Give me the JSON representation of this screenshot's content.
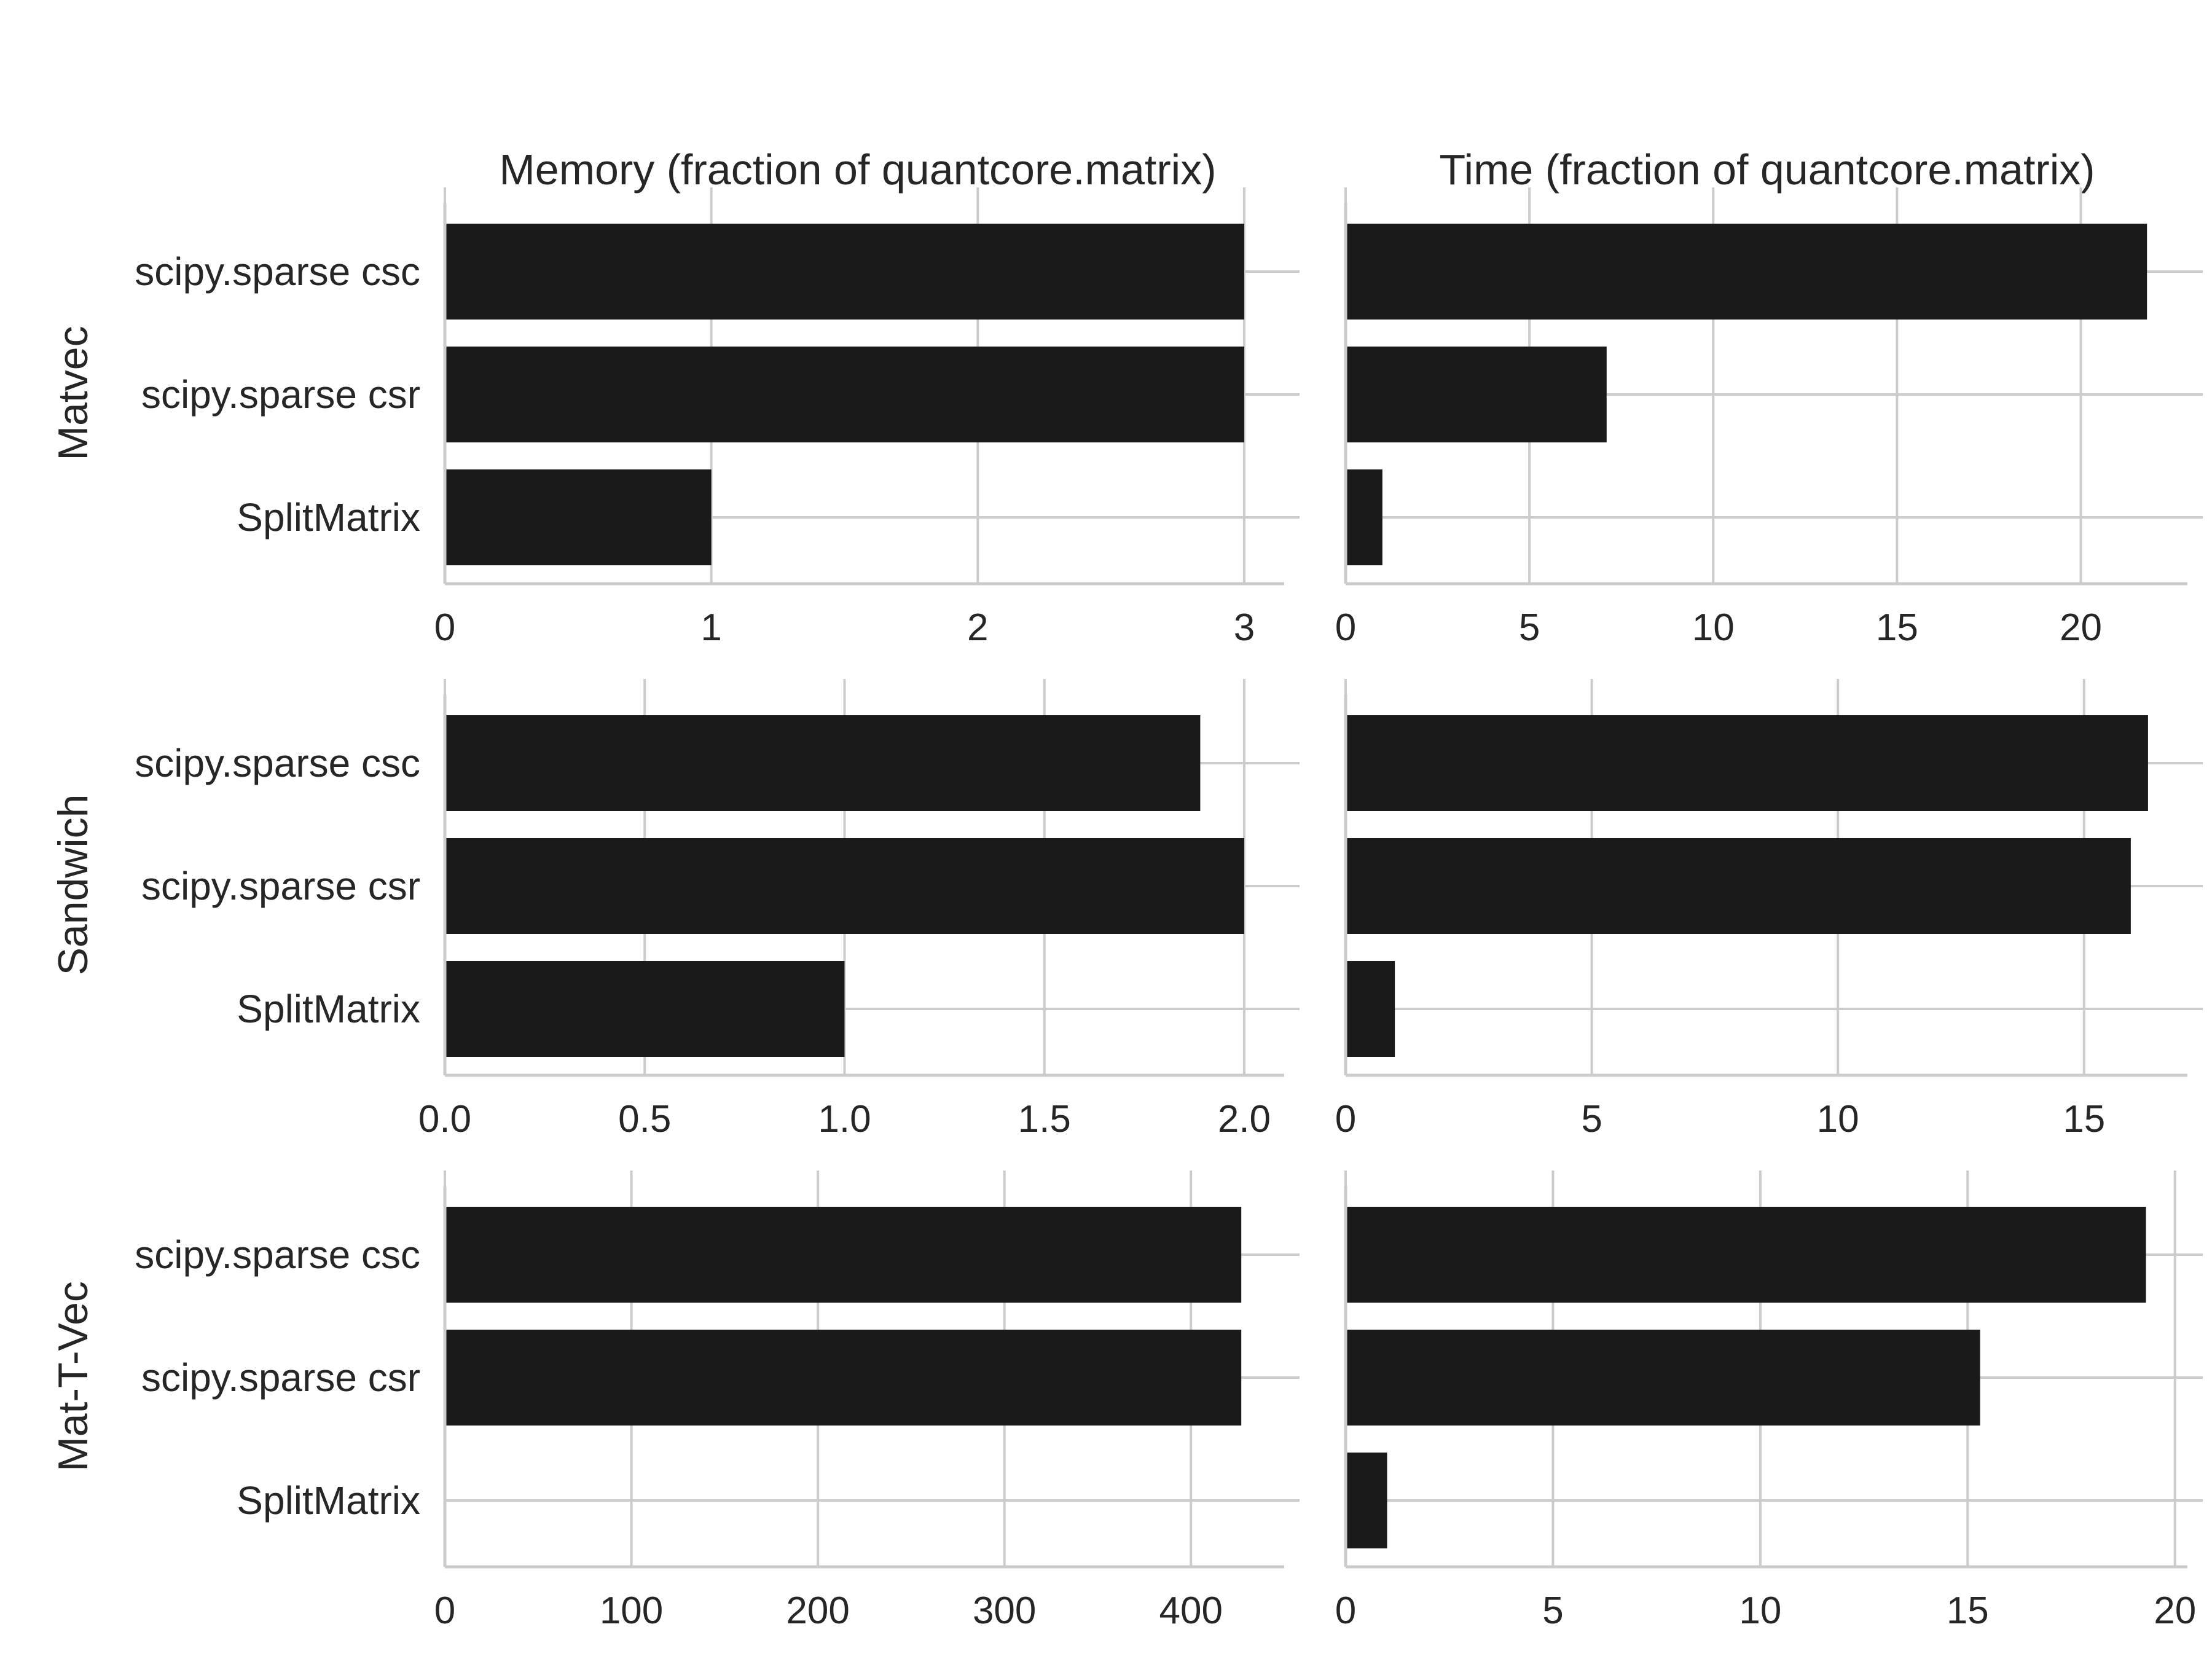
{
  "chart_data": {
    "type": "bar",
    "orientation": "horizontal",
    "col_titles": [
      "Memory (fraction of quantcore.matrix)",
      "Time (fraction of quantcore.matrix)"
    ],
    "row_labels": [
      "Matvec",
      "Sandwich",
      "Mat-T-Vec"
    ],
    "categories": [
      "scipy.sparse csc",
      "scipy.sparse csr",
      "SplitMatrix"
    ],
    "grid": true,
    "colors": {
      "bar": "#1a1a1a",
      "grid": "#cccccc",
      "text": "#262626",
      "background": "#ffffff"
    },
    "panels": [
      {
        "row": "Matvec",
        "metric": "Memory",
        "values": [
          3.0,
          3.0,
          1.0
        ],
        "xlim": [
          0,
          3.15
        ],
        "ticks": [
          0,
          1,
          2,
          3
        ],
        "tick_labels": [
          "0",
          "1",
          "2",
          "3"
        ]
      },
      {
        "row": "Matvec",
        "metric": "Time",
        "values": [
          21.8,
          7.1,
          1.0
        ],
        "xlim": [
          0,
          22.9
        ],
        "ticks": [
          0,
          5,
          10,
          15,
          20
        ],
        "tick_labels": [
          "0",
          "5",
          "10",
          "15",
          "20"
        ]
      },
      {
        "row": "Sandwich",
        "metric": "Memory",
        "values": [
          1.89,
          2.0,
          1.0
        ],
        "xlim": [
          0,
          2.1
        ],
        "ticks": [
          0,
          0.5,
          1.0,
          1.5,
          2.0
        ],
        "tick_labels": [
          "0.0",
          "0.5",
          "1.0",
          "1.5",
          "2.0"
        ]
      },
      {
        "row": "Sandwich",
        "metric": "Time",
        "values": [
          16.3,
          15.95,
          1.0
        ],
        "xlim": [
          0,
          17.1
        ],
        "ticks": [
          0,
          5,
          10,
          15
        ],
        "tick_labels": [
          "0",
          "5",
          "10",
          "15"
        ]
      },
      {
        "row": "Mat-T-Vec",
        "metric": "Memory",
        "values": [
          427,
          427,
          0
        ],
        "xlim": [
          0,
          450
        ],
        "ticks": [
          0,
          100,
          200,
          300,
          400
        ],
        "tick_labels": [
          "0",
          "100",
          "200",
          "300",
          "400"
        ]
      },
      {
        "row": "Mat-T-Vec",
        "metric": "Time",
        "values": [
          19.3,
          15.3,
          1.0
        ],
        "xlim": [
          0,
          20.3
        ],
        "ticks": [
          0,
          5,
          10,
          15,
          20
        ],
        "tick_labels": [
          "0",
          "5",
          "10",
          "15",
          "20"
        ]
      }
    ]
  }
}
